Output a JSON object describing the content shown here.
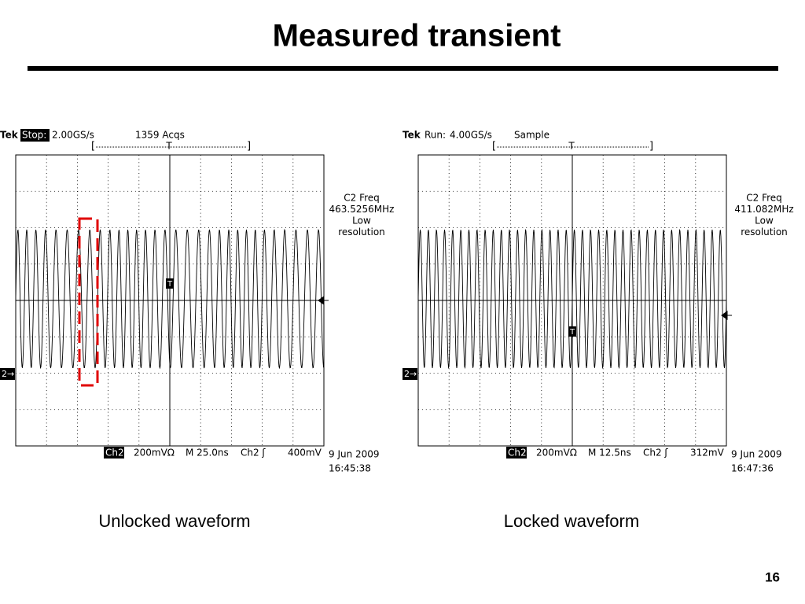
{
  "title": "Measured transient",
  "scopes": [
    {
      "header": {
        "brand": "Tek",
        "mode": "Stop:",
        "rate": "2.00GS/s",
        "acquisition": "1359 Acqs",
        "trigger_position": "T"
      },
      "readout": [
        "C2 Freq",
        "463.5256MHz",
        "Low",
        "resolution"
      ],
      "trigger_marker": "T",
      "ground_marker": "2→",
      "footer": {
        "channel": "Ch2",
        "scale": "200mVΩ",
        "timebase": "M 25.0ns",
        "trigger_source": "Ch2 ʃ",
        "trigger_level": "400mV",
        "date": "9 Jun 2009",
        "time": "16:45:38"
      },
      "caption": "Unlocked waveform"
    },
    {
      "header": {
        "brand": "Tek",
        "mode": "Run:",
        "rate": "4.00GS/s",
        "acquisition": "Sample",
        "trigger_position": "T"
      },
      "readout": [
        "C2 Freq",
        "411.082MHz",
        "Low",
        "resolution"
      ],
      "trigger_marker": "T",
      "ground_marker": "2→",
      "footer": {
        "channel": "Ch2",
        "scale": "200mVΩ",
        "timebase": "M 12.5ns",
        "trigger_source": "Ch2 ʃ",
        "trigger_level": "312mV",
        "date": "9 Jun 2009",
        "time": "16:47:36"
      },
      "caption": "Locked waveform"
    }
  ],
  "page_number": "16"
}
